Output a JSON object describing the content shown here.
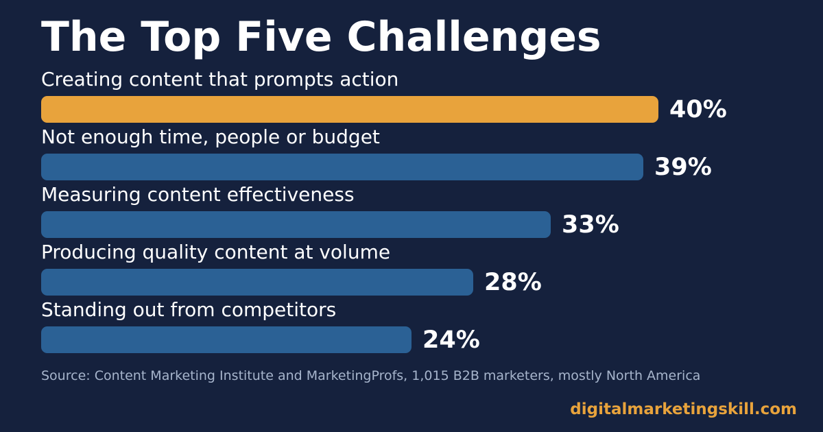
{
  "colors": {
    "background": "#15213d",
    "highlight_bar": "#e8a33c",
    "bar": "#2b6195",
    "text": "#ffffff",
    "source_text": "#a7b5cc",
    "brand": "#e8a33c"
  },
  "chart_data": {
    "type": "bar",
    "orientation": "horizontal",
    "title": "The Top Five Challenges",
    "categories": [
      "Creating content that prompts action",
      "Not enough time, people or budget",
      "Measuring content effectiveness",
      "Producing quality content at volume",
      "Standing out from competitors"
    ],
    "values": [
      40,
      39,
      33,
      28,
      24
    ],
    "value_labels": [
      "40%",
      "39%",
      "33%",
      "28%",
      "24%"
    ],
    "highlight_index": 0,
    "xlim": [
      0,
      40
    ],
    "grid": false,
    "legend": "none"
  },
  "source": "Source: Content Marketing Institute and MarketingProfs, 1,015 B2B marketers, mostly North America",
  "brand": "digitalmarketingskill.com"
}
